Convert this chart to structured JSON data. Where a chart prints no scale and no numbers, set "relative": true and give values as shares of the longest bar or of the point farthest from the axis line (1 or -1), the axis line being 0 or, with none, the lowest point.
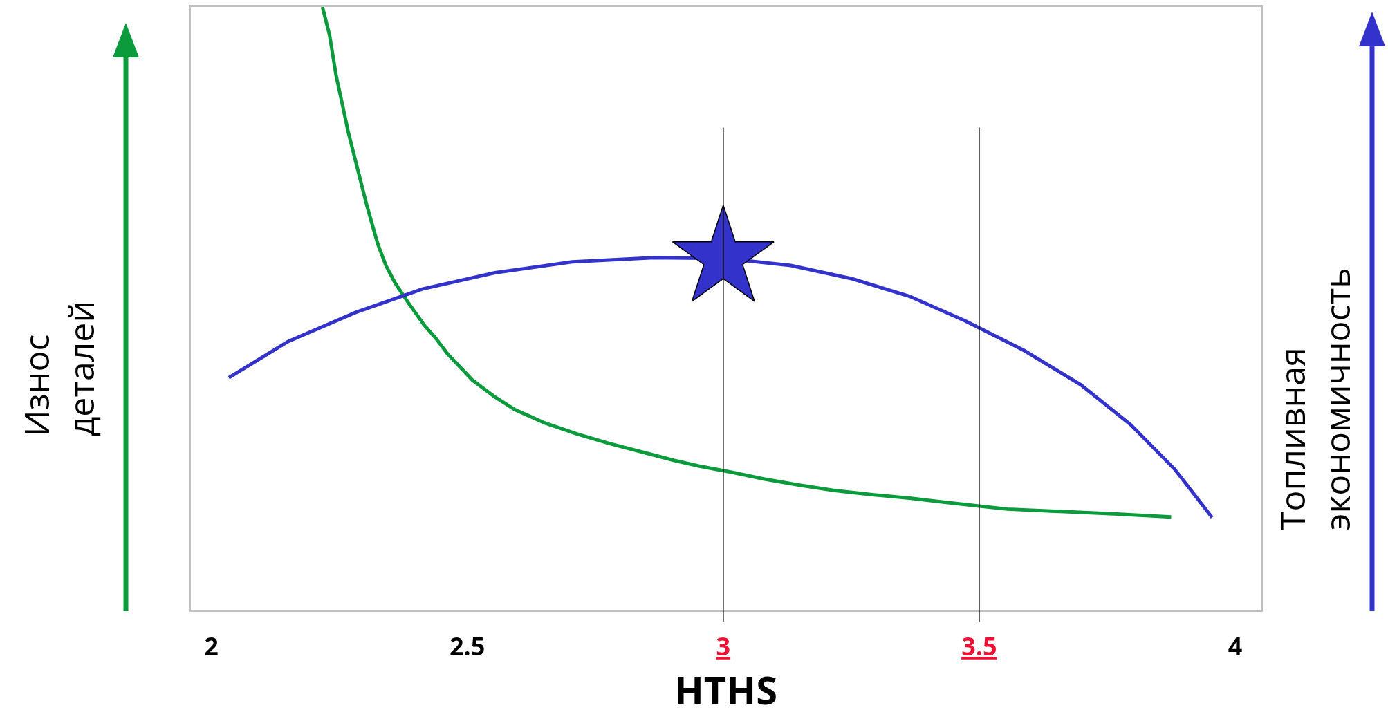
{
  "chart_data": {
    "type": "line",
    "relative": true,
    "xlabel": "HTHS",
    "ylabel": "Износ деталей",
    "y2label": "Топливная экономичность",
    "xlim": [
      1.96,
      4.05
    ],
    "xticks": [
      2,
      2.5,
      3,
      3.5,
      4
    ],
    "tick_labels": "x",
    "grid": false,
    "marker": "none",
    "line_style": "solid",
    "ref_lines": [
      {
        "axis": "x",
        "value": 3,
        "color": "#000000"
      },
      {
        "axis": "x",
        "value": 3.5,
        "color": "#000000"
      }
    ],
    "series": [
      {
        "type": "line",
        "color": "#0b9a3c",
        "x": [
          2.217,
          2.231,
          2.244,
          2.256,
          2.267,
          2.283,
          2.304,
          2.325,
          2.341,
          2.359,
          2.385,
          2.415,
          2.438,
          2.461,
          2.51,
          2.554,
          2.593,
          2.651,
          2.713,
          2.777,
          2.849,
          2.903,
          2.955,
          3.018,
          3.079,
          3.147,
          3.215,
          3.291,
          3.367,
          3.427,
          3.5,
          3.555,
          3.659,
          3.763,
          3.875
        ],
        "values": [
          1.0,
          0.953,
          0.885,
          0.838,
          0.794,
          0.74,
          0.67,
          0.607,
          0.571,
          0.542,
          0.509,
          0.473,
          0.451,
          0.425,
          0.381,
          0.353,
          0.332,
          0.31,
          0.292,
          0.276,
          0.26,
          0.248,
          0.238,
          0.228,
          0.217,
          0.207,
          0.198,
          0.191,
          0.185,
          0.179,
          0.172,
          0.167,
          0.163,
          0.159,
          0.154
        ]
      },
      {
        "type": "line",
        "color": "#3333cc",
        "x": [
          2.034,
          2.15,
          2.281,
          2.412,
          2.554,
          2.705,
          2.864,
          3.0,
          3.132,
          3.252,
          3.364,
          3.473,
          3.588,
          3.699,
          3.796,
          3.882,
          3.955
        ],
        "values": [
          0.385,
          0.445,
          0.493,
          0.532,
          0.559,
          0.577,
          0.584,
          0.583,
          0.571,
          0.549,
          0.52,
          0.479,
          0.43,
          0.373,
          0.307,
          0.233,
          0.153
        ]
      },
      {
        "type": "scatter",
        "color": "#3333cc",
        "marker": "star",
        "x": [
          3.0
        ],
        "values": [
          0.583
        ]
      }
    ]
  }
}
